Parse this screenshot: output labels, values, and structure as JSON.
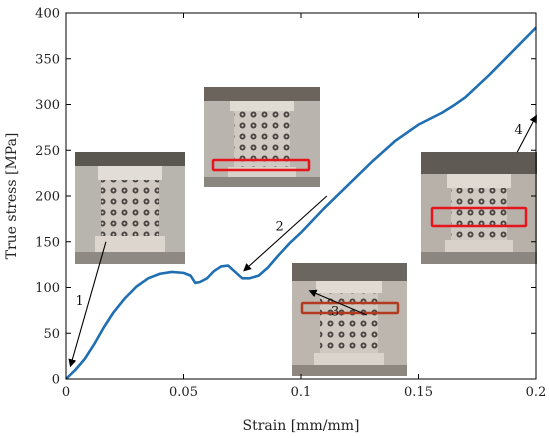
{
  "chart_data": {
    "type": "line",
    "title": "",
    "xlabel": "Strain [mm/mm]",
    "ylabel": "True stress [MPa]",
    "xlim": [
      0,
      0.2
    ],
    "ylim": [
      0,
      400
    ],
    "xticks": [
      0,
      0.05,
      0.1,
      0.15,
      0.2
    ],
    "xtick_labels": [
      "0",
      "0.05",
      "0.1",
      "0.15",
      "0.2"
    ],
    "yticks": [
      0,
      50,
      100,
      150,
      200,
      250,
      300,
      350,
      400
    ],
    "ytick_labels": [
      "0",
      "50",
      "100",
      "150",
      "200",
      "250",
      "300",
      "350",
      "400"
    ],
    "grid": false,
    "series": [
      {
        "color": "#1f6fb2",
        "x": [
          0,
          0.004,
          0.008,
          0.012,
          0.016,
          0.02,
          0.025,
          0.03,
          0.035,
          0.04,
          0.045,
          0.05,
          0.053,
          0.055,
          0.057,
          0.06,
          0.063,
          0.066,
          0.069,
          0.072,
          0.075,
          0.078,
          0.082,
          0.086,
          0.09,
          0.095,
          0.1,
          0.11,
          0.12,
          0.13,
          0.14,
          0.15,
          0.16,
          0.165,
          0.17,
          0.18,
          0.19,
          0.2
        ],
        "y": [
          0,
          10,
          22,
          38,
          56,
          72,
          88,
          101,
          110,
          115,
          117,
          116,
          113,
          105,
          106,
          110,
          118,
          123,
          124,
          117,
          110,
          110,
          113,
          122,
          134,
          148,
          160,
          187,
          212,
          237,
          260,
          278,
          291,
          299,
          308,
          332,
          358,
          384
        ]
      }
    ],
    "annotations": [
      {
        "label": "1",
        "from": [
          0.017,
          150
        ],
        "to": [
          0.002,
          15
        ]
      },
      {
        "label": "2",
        "from": [
          0.111,
          200
        ],
        "to": [
          0.076,
          119
        ]
      },
      {
        "label": "3",
        "from": [
          0.128,
          70
        ],
        "to": [
          0.104,
          96
        ]
      },
      {
        "label": "4",
        "from": [
          0.192,
          248
        ],
        "to": [
          0.2,
          287
        ]
      }
    ]
  }
}
